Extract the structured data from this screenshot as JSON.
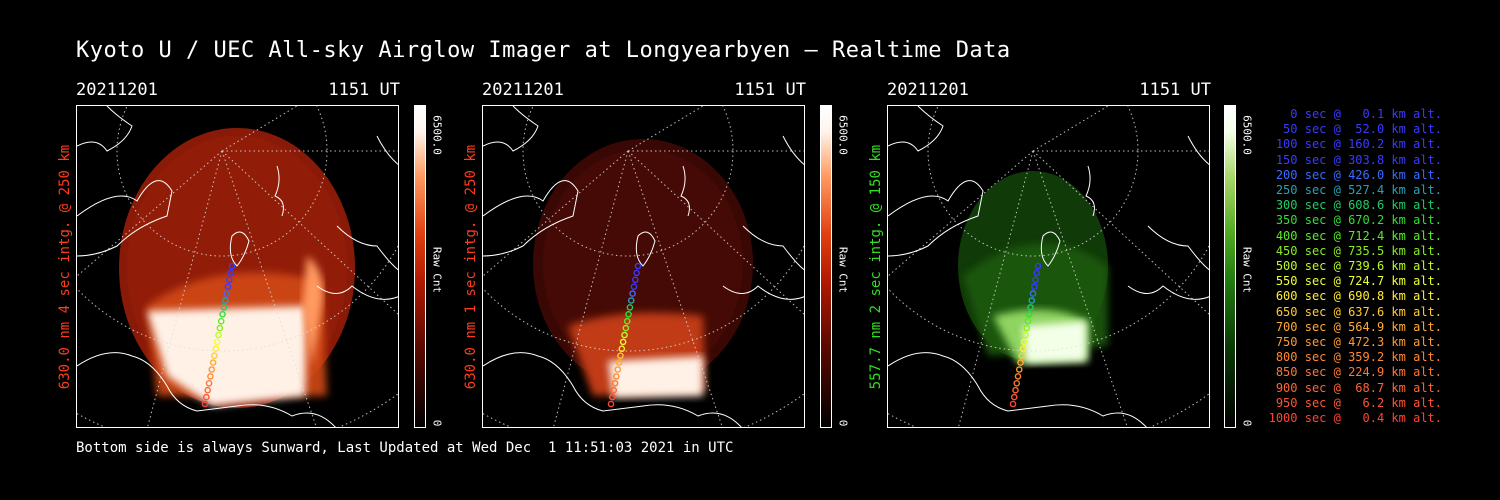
{
  "title": "Kyoto U / UEC All-sky Airglow Imager at Longyearbyen — Realtime Data",
  "footer": "Bottom side is always Sunward, Last Updated at Wed Dec  1 11:51:03 2021 in UTC",
  "panels": [
    {
      "date": "20211201",
      "time": "1151 UT",
      "ylabel": "630.0 nm 4 sec intg. @ 250 km",
      "cbar_max": "6500.0",
      "cbar_mid": "Raw Cnt",
      "cbar_min": "0",
      "color": "#ff3b1a",
      "cmap": "red"
    },
    {
      "date": "20211201",
      "time": "1151 UT",
      "ylabel": "630.0 nm 1 sec intg. @ 250 km",
      "cbar_max": "6500.0",
      "cbar_mid": "Raw Cnt",
      "cbar_min": "0",
      "color": "#ff3b1a",
      "cmap": "red"
    },
    {
      "date": "20211201",
      "time": "1151 UT",
      "ylabel": "557.7 nm 2 sec intg. @ 150 km",
      "cbar_max": "6500.0",
      "cbar_mid": "Raw Cnt",
      "cbar_min": "0",
      "color": "#33dd22",
      "cmap": "green"
    }
  ],
  "legend": [
    {
      "text": "0 sec @   0.1 km alt.",
      "color": "#3a3aff"
    },
    {
      "text": "50 sec @  52.0 km alt.",
      "color": "#3a3aff"
    },
    {
      "text": "100 sec @ 160.2 km alt.",
      "color": "#3a3aff"
    },
    {
      "text": "150 sec @ 303.8 km alt.",
      "color": "#3a3aff"
    },
    {
      "text": "200 sec @ 426.0 km alt.",
      "color": "#3a6aff"
    },
    {
      "text": "250 sec @ 527.4 km alt.",
      "color": "#2aa0b0"
    },
    {
      "text": "300 sec @ 608.6 km alt.",
      "color": "#22cc66"
    },
    {
      "text": "350 sec @ 670.2 km alt.",
      "color": "#33dd33"
    },
    {
      "text": "400 sec @ 712.4 km alt.",
      "color": "#55ee22"
    },
    {
      "text": "450 sec @ 735.5 km alt.",
      "color": "#88ee22"
    },
    {
      "text": "500 sec @ 739.6 km alt.",
      "color": "#bbff22"
    },
    {
      "text": "550 sec @ 724.7 km alt.",
      "color": "#eeff33"
    },
    {
      "text": "600 sec @ 690.8 km alt.",
      "color": "#ffee33"
    },
    {
      "text": "650 sec @ 637.6 km alt.",
      "color": "#ffcc33"
    },
    {
      "text": "700 sec @ 564.9 km alt.",
      "color": "#ffaa33"
    },
    {
      "text": "750 sec @ 472.3 km alt.",
      "color": "#ff9933"
    },
    {
      "text": "800 sec @ 359.2 km alt.",
      "color": "#ff8833"
    },
    {
      "text": "850 sec @ 224.9 km alt.",
      "color": "#ff7733"
    },
    {
      "text": "900 sec @  68.7 km alt.",
      "color": "#ff6633"
    },
    {
      "text": "950 sec @   6.2 km alt.",
      "color": "#ff5533"
    },
    {
      "text": "1000 sec @   0.4 km alt.",
      "color": "#ff4433"
    }
  ]
}
